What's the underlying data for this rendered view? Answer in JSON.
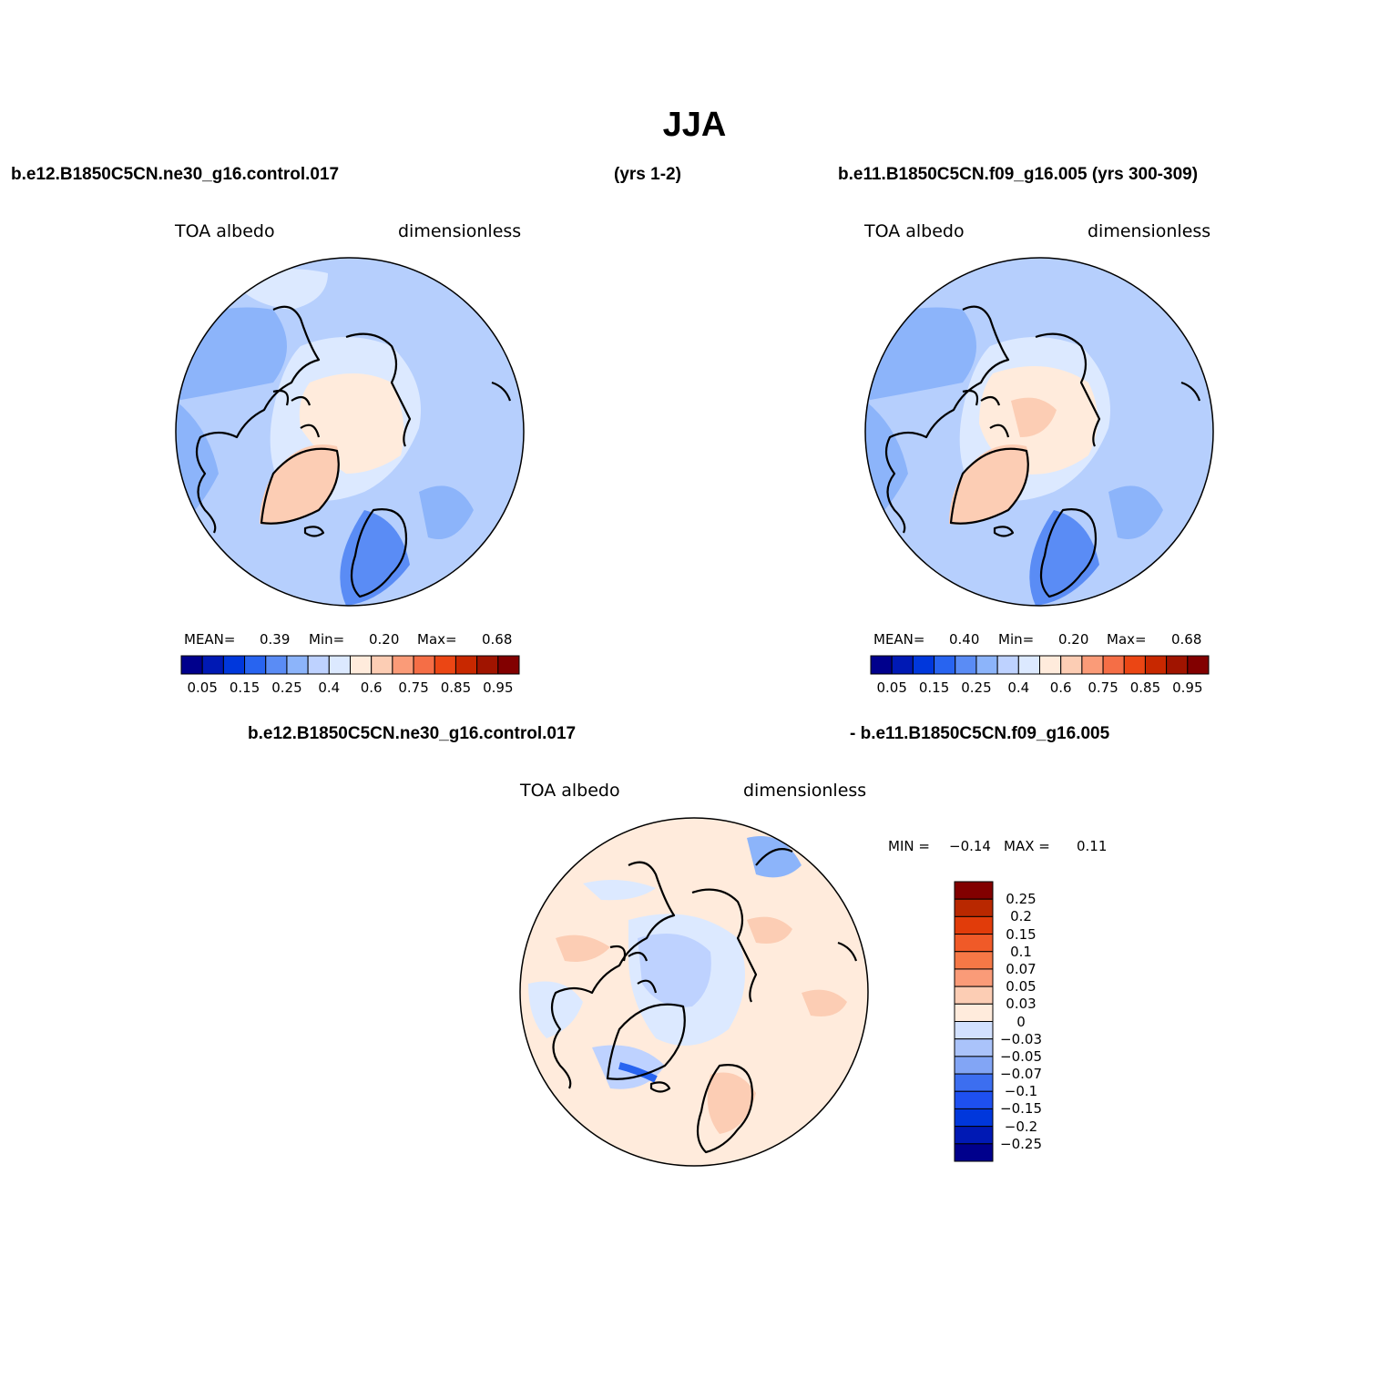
{
  "title": "JJA",
  "header": {
    "case1": "b.e12.B1850C5CN.ne30_g16.control.017",
    "case1_years": "(yrs 1-2)",
    "case2": "b.e11.B1850C5CN.f09_g16.005 (yrs 300-309)",
    "diff_left": "b.e12.B1850C5CN.ne30_g16.control.017",
    "diff_right": "- b.e11.B1850C5CN.f09_g16.005"
  },
  "panels": [
    {
      "variable": "TOA  albedo",
      "units": "dimensionless",
      "stats": {
        "mean_label": "MEAN=",
        "mean": "0.39",
        "min_label": "Min=",
        "min": "0.20",
        "max_label": "Max=",
        "max": "0.68"
      }
    },
    {
      "variable": "TOA  albedo",
      "units": "dimensionless",
      "stats": {
        "mean_label": "MEAN=",
        "mean": "0.40",
        "min_label": "Min=",
        "min": "0.20",
        "max_label": "Max=",
        "max": "0.68"
      }
    },
    {
      "variable": "TOA  albedo",
      "units": "dimensionless",
      "stats": {
        "min_label": "MIN =",
        "min": "−0.14",
        "max_label": "MAX =",
        "max": "0.11"
      }
    }
  ],
  "colorbar_abs": {
    "colors": [
      "#00008c",
      "#0019b4",
      "#0037dc",
      "#2864f0",
      "#5a8cf5",
      "#8cb4fa",
      "#bed2ff",
      "#dce9ff",
      "#ffebdc",
      "#fccdb4",
      "#fa9b78",
      "#f56e46",
      "#eb4614",
      "#c82800",
      "#a01400",
      "#820000"
    ],
    "labels": [
      "0.05",
      "0.15",
      "0.25",
      "0.4",
      "0.6",
      "0.75",
      "0.85",
      "0.95"
    ]
  },
  "colorbar_diff": {
    "colors": [
      "#00008c",
      "#0019b4",
      "#0037dc",
      "#1e50f0",
      "#3c6ef0",
      "#82a5f5",
      "#aac3fa",
      "#d2e1ff",
      "#ffebdc",
      "#fccdb4",
      "#fa9b78",
      "#f57846",
      "#f05a28",
      "#e13c0a",
      "#b92800",
      "#820000"
    ],
    "labels": [
      "0.25",
      "0.2",
      "0.15",
      "0.1",
      "0.07",
      "0.05",
      "0.03",
      "0",
      "−0.03",
      "−0.05",
      "−0.07",
      "−0.1",
      "−0.15",
      "−0.2",
      "−0.25"
    ]
  },
  "chart_data": {
    "type": "map",
    "projection": "north polar stereographic",
    "field": "TOA albedo",
    "season": "JJA"
  }
}
